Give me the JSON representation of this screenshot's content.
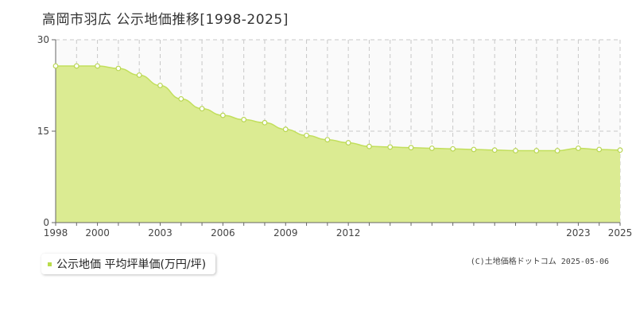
{
  "chart_data": {
    "type": "area",
    "title": "高岡市羽広 公示地価推移[1998-2025]",
    "x": [
      1998,
      1999,
      2000,
      2001,
      2002,
      2003,
      2004,
      2005,
      2006,
      2007,
      2008,
      2009,
      2010,
      2011,
      2012,
      2013,
      2014,
      2015,
      2016,
      2017,
      2018,
      2019,
      2020,
      2021,
      2022,
      2023,
      2024,
      2025
    ],
    "series": [
      {
        "name": "公示地価 平均坪単価(万円/坪)",
        "values": [
          25.7,
          25.7,
          25.7,
          25.3,
          24.2,
          22.5,
          20.3,
          18.7,
          17.6,
          16.9,
          16.4,
          15.3,
          14.3,
          13.6,
          13.1,
          12.5,
          12.4,
          12.3,
          12.2,
          12.1,
          12.0,
          11.9,
          11.8,
          11.8,
          11.8,
          12.2,
          12.0,
          11.9
        ]
      }
    ],
    "xtick_labels": [
      "1998",
      "2000",
      "2003",
      "2006",
      "2009",
      "2012",
      "2023",
      "2025"
    ],
    "yticks": [
      0,
      15,
      30
    ],
    "ylim": [
      0,
      30
    ],
    "xlabel": "",
    "ylabel": "",
    "grid": true,
    "legend_position": "bottom-left",
    "colors": {
      "fill": "#dbeb92",
      "line": "#c2df5c",
      "marker_fill": "#ffffff",
      "marker_stroke": "#b9d653",
      "grid": "#c8c8c8",
      "axis": "#666666",
      "plot_bg": "#fafafa"
    }
  },
  "legend": {
    "label": "公示地価 平均坪単価(万円/坪)",
    "marker_color": "#b9dc4b"
  },
  "copyright": "(C)土地価格ドットコム 2025-05-06"
}
